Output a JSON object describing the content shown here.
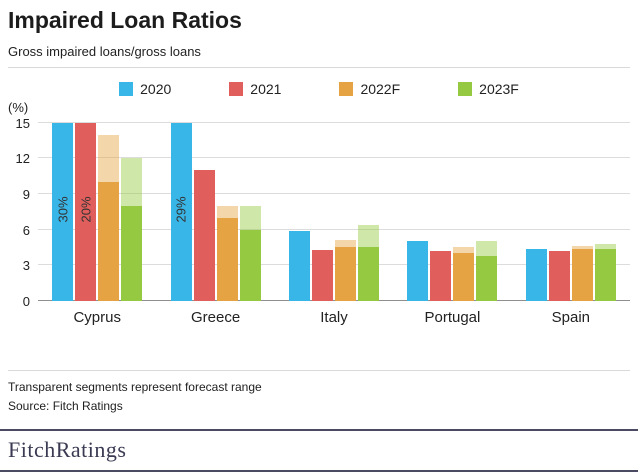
{
  "header": {
    "title": "Impaired Loan Ratios",
    "subtitle": "Gross impaired loans/gross loans"
  },
  "chart_data": {
    "type": "bar",
    "title": "Impaired Loan Ratios",
    "subtitle": "Gross impaired loans/gross loans",
    "unit_label": "(%)",
    "categories": [
      "Cyprus",
      "Greece",
      "Italy",
      "Portugal",
      "Spain"
    ],
    "ylim": [
      0,
      15
    ],
    "yticks": [
      0,
      3,
      6,
      9,
      12,
      15
    ],
    "grid": true,
    "legend_position": "top",
    "clip_note": "Bars exceeding 15% are clipped at the axis top and labeled with their value",
    "series": [
      {
        "name": "2020",
        "color": "#38b6e8",
        "values": [
          30,
          29,
          5.9,
          5.0,
          4.4
        ]
      },
      {
        "name": "2021",
        "color": "#e05e5c",
        "values": [
          20,
          11,
          4.3,
          4.2,
          4.2
        ]
      },
      {
        "name": "2022F",
        "color": "#e6a344",
        "values": [
          10,
          7,
          4.5,
          4.0,
          4.4
        ],
        "forecast_to": [
          14,
          8,
          5.1,
          4.5,
          4.6
        ]
      },
      {
        "name": "2023F",
        "color": "#95c941",
        "values": [
          8,
          6,
          4.5,
          3.8,
          4.4
        ],
        "forecast_to": [
          12,
          8,
          6.4,
          5.0,
          4.8
        ]
      }
    ]
  },
  "footnotes": {
    "line1": "Transparent segments represent forecast range",
    "line2": "Source: Fitch Ratings"
  },
  "footer": {
    "logo_text": "FitchRatings"
  }
}
